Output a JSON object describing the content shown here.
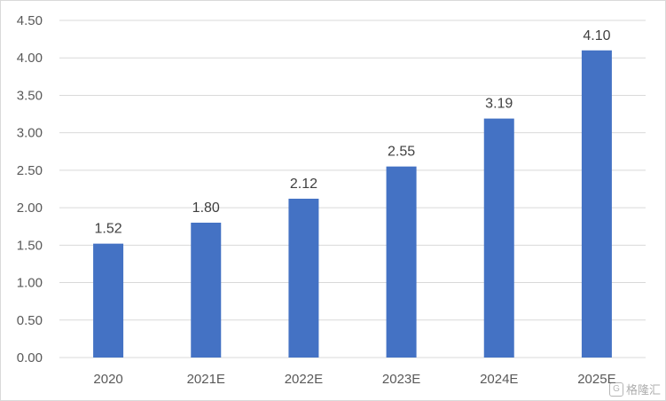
{
  "chart_data": {
    "type": "bar",
    "categories": [
      "2020",
      "2021E",
      "2022E",
      "2023E",
      "2024E",
      "2025E"
    ],
    "values": [
      1.52,
      1.8,
      2.12,
      2.55,
      3.19,
      4.1
    ],
    "data_labels": [
      "1.52",
      "1.80",
      "2.12",
      "2.55",
      "3.19",
      "4.10"
    ],
    "ylim": [
      0,
      4.5
    ],
    "y_ticks": [
      "0.00",
      "0.50",
      "1.00",
      "1.50",
      "2.00",
      "2.50",
      "3.00",
      "3.50",
      "4.00",
      "4.50"
    ],
    "y_tick_values": [
      0,
      0.5,
      1.0,
      1.5,
      2.0,
      2.5,
      3.0,
      3.5,
      4.0,
      4.5
    ],
    "grid": true,
    "legend": "none",
    "bar_color": "#4472C4",
    "grid_color": "#d9d9d9"
  },
  "watermark": {
    "icon": "G",
    "text": "格隆汇"
  }
}
